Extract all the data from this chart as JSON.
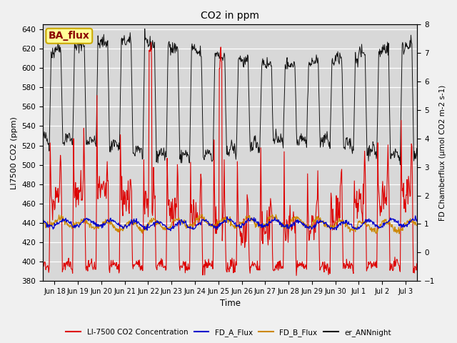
{
  "title": "CO2 in ppm",
  "ylabel_left": "LI7500 CO2 (ppm)",
  "ylabel_right": "FD Chamberflux (μmol CO2 m-2 s-1)",
  "xlabel": "Time",
  "ylim_left": [
    380,
    645
  ],
  "ylim_right": [
    -1.0,
    8.0
  ],
  "yticks_left": [
    380,
    400,
    420,
    440,
    460,
    480,
    500,
    520,
    540,
    560,
    580,
    600,
    620,
    640
  ],
  "yticks_right": [
    -1.0,
    0.0,
    1.0,
    2.0,
    3.0,
    4.0,
    5.0,
    6.0,
    7.0,
    8.0
  ],
  "fig_bg_color": "#f0f0f0",
  "plot_bg_color": "#d8d8d8",
  "grid_color": "white",
  "annotation_text": "BA_flux",
  "annotation_color": "#8b0000",
  "annotation_bg": "#ffff99",
  "annotation_border": "#ccaa00",
  "color_li7500": "#dd0000",
  "color_fd_a": "#0000cc",
  "color_fd_b": "#cc8800",
  "color_er_ann": "#111111",
  "legend_labels": [
    "LI-7500 CO2 Concentration",
    "FD_A_Flux",
    "FD_B_Flux",
    "er_ANNnight"
  ],
  "legend_colors": [
    "#dd0000",
    "#0000cc",
    "#cc8800",
    "#111111"
  ],
  "xticklabels": [
    "Jun 18",
    "Jun 19",
    "Jun 20",
    "Jun 21",
    "Jun 22",
    "Jun 23",
    "Jun 24",
    "Jun 25",
    "Jun 26",
    "Jun 27",
    "Jun 28",
    "Jun 29",
    "Jun 30",
    "Jul 1",
    "Jul 2",
    "Jul 3"
  ]
}
